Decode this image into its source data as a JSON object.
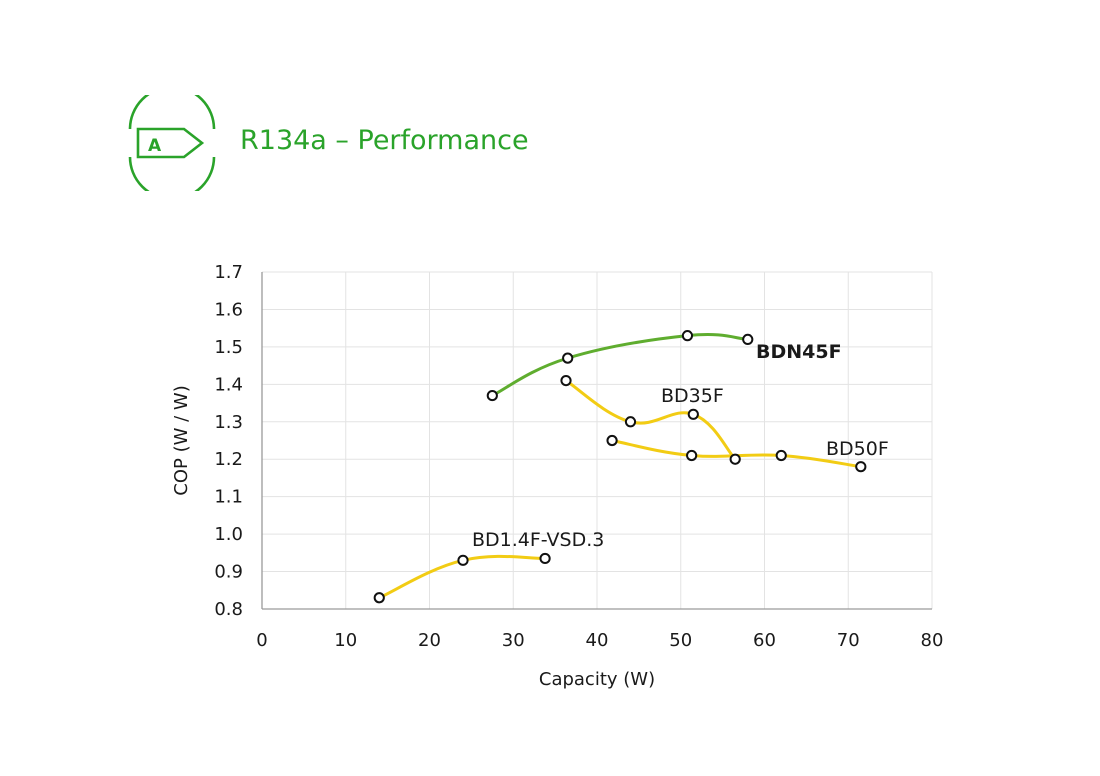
{
  "header": {
    "title": "R134a – Performance",
    "badge_letter": "A",
    "accent_color": "#2aa32a",
    "icon": "energy-class-icon"
  },
  "chart_data": {
    "type": "line",
    "xlabel": "Capacity (W)",
    "ylabel": "COP (W / W)",
    "xlim": [
      0,
      80
    ],
    "ylim": [
      0.8,
      1.7
    ],
    "xticks": [
      0,
      10,
      20,
      30,
      40,
      50,
      60,
      70,
      80
    ],
    "yticks": [
      0.8,
      0.9,
      1.0,
      1.1,
      1.2,
      1.3,
      1.4,
      1.5,
      1.6,
      1.7
    ],
    "grid": true,
    "series": [
      {
        "name": "BDN45F",
        "color": "#5fad2f",
        "bold_label": true,
        "points": [
          [
            27.5,
            1.37
          ],
          [
            36.5,
            1.47
          ],
          [
            50.8,
            1.53
          ],
          [
            58.0,
            1.52
          ]
        ]
      },
      {
        "name": "BD35F",
        "color": "#f2cc14",
        "bold_label": false,
        "points": [
          [
            36.3,
            1.41
          ],
          [
            44.0,
            1.3
          ],
          [
            51.5,
            1.32
          ],
          [
            56.5,
            1.2
          ]
        ]
      },
      {
        "name": "BD50F",
        "color": "#f2cc14",
        "bold_label": false,
        "points": [
          [
            41.8,
            1.25
          ],
          [
            51.3,
            1.21
          ],
          [
            62.0,
            1.21
          ],
          [
            71.5,
            1.18
          ]
        ]
      },
      {
        "name": "BD1.4F-VSD.3",
        "color": "#f2cc14",
        "bold_label": false,
        "points": [
          [
            14.0,
            0.83
          ],
          [
            24.0,
            0.93
          ],
          [
            33.8,
            0.935
          ]
        ]
      }
    ]
  }
}
